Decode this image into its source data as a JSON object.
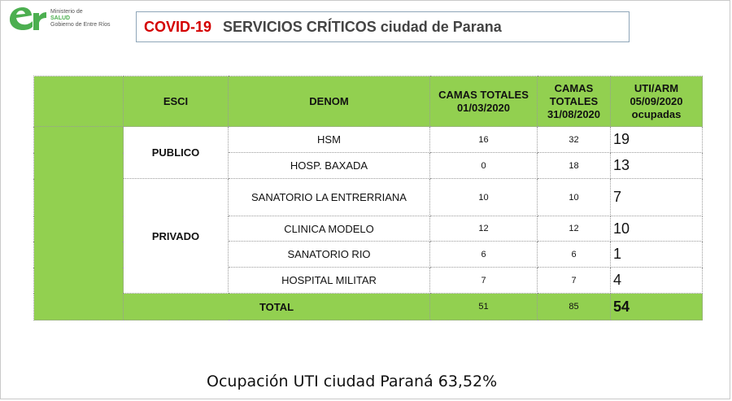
{
  "logo": {
    "line1": "Ministerio de",
    "line2": "SALUD",
    "line3": "Gobierno de Entre Ríos"
  },
  "title": {
    "red": "COVID-19",
    "rest": "SERVICIOS CRÍTICOS  ciudad de Parana"
  },
  "table": {
    "headers": [
      "ESCI",
      "DENOM",
      "CAMAS TOTALES 01/03/2020",
      "CAMAS TOTALES 31/08/2020",
      "UTI/ARM 05/09/2020 ocupadas"
    ],
    "groups": {
      "publico": "PUBLICO",
      "privado": "PRIVADO"
    },
    "rows": [
      {
        "denom": "HSM",
        "c1": "16",
        "c2": "32",
        "uti": "19"
      },
      {
        "denom": "HOSP. BAXADA",
        "c1": "0",
        "c2": "18",
        "uti": "13"
      },
      {
        "denom": "SANATORIO LA ENTRERRIANA",
        "c1": "10",
        "c2": "10",
        "uti": "7"
      },
      {
        "denom": "CLINICA MODELO",
        "c1": "12",
        "c2": "12",
        "uti": "10"
      },
      {
        "denom": "SANATORIO RIO",
        "c1": "6",
        "c2": "6",
        "uti": "1"
      },
      {
        "denom": "HOSPITAL MILITAR",
        "c1": "7",
        "c2": "7",
        "uti": "4"
      }
    ],
    "total": {
      "label": "TOTAL",
      "c1": "51",
      "c2": "85",
      "uti": "54"
    }
  },
  "footer": "Ocupación UTI ciudad Paraná 63,52%"
}
